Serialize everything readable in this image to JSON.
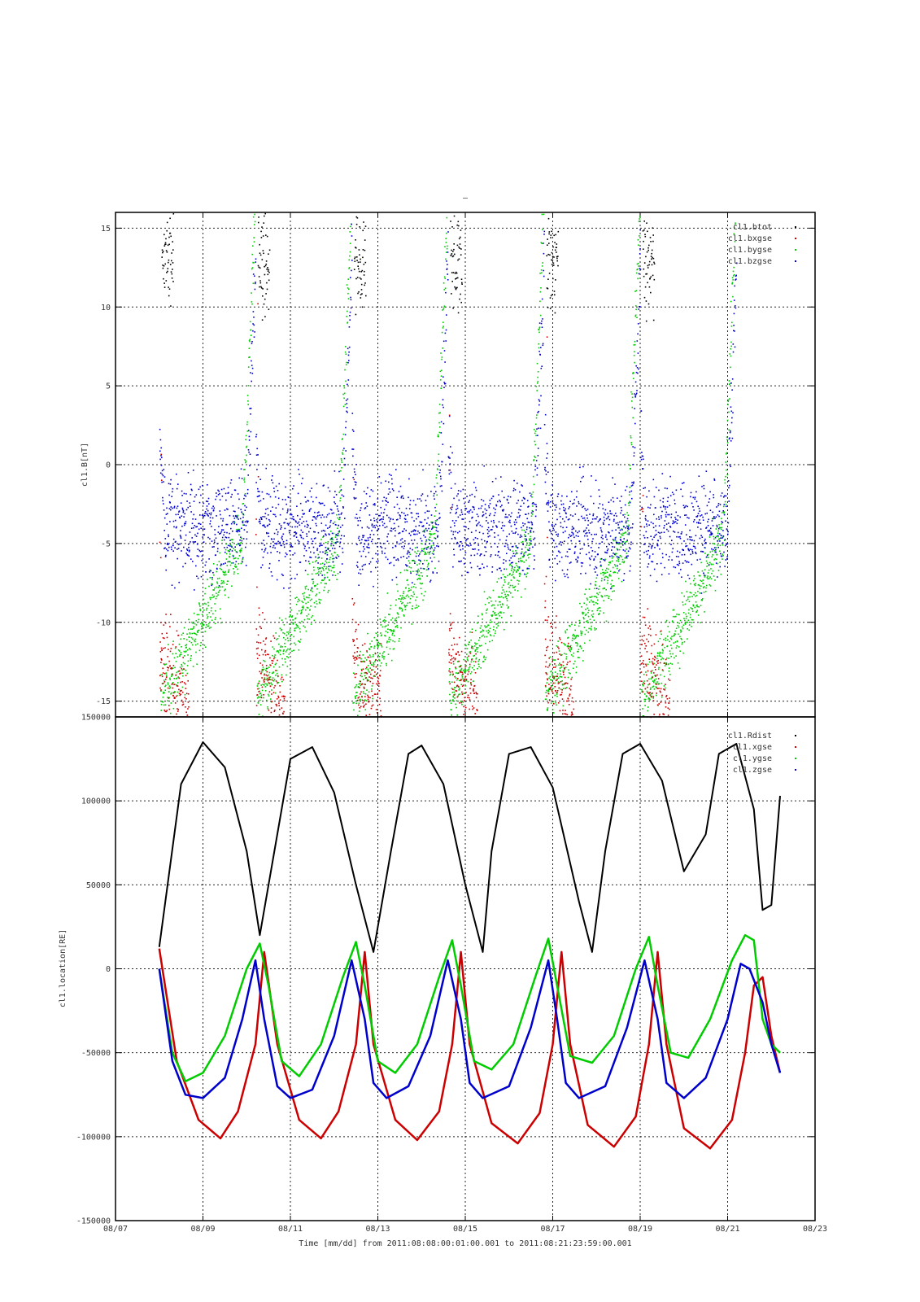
{
  "title": "–",
  "xlabel": "Time [mm/dd]  from 2011:08:08:00:01:00.001  to  2011:08:21:23:59:00.001",
  "chart_data": [
    {
      "type": "scatter",
      "panel": "top",
      "title": "–",
      "ylabel": "cl1.B[nT]",
      "xlabel": "Time [mm/dd]  from 2011:08:08:00:01:00.001  to  2011:08:21:23:59:00.001",
      "x_unit": "days since 2011-08-07 (08/07)",
      "xlim": [
        0,
        16
      ],
      "ylim": [
        -16,
        16
      ],
      "xticks": [
        0,
        2,
        4,
        6,
        8,
        10,
        12,
        14,
        16
      ],
      "xtick_labels": [
        "08/07",
        "08/09",
        "08/11",
        "08/13",
        "08/15",
        "08/17",
        "08/19",
        "08/21",
        "08/23"
      ],
      "yticks": [
        -15,
        -10,
        -5,
        0,
        5,
        10,
        15
      ],
      "ytick_labels": [
        "-15",
        "-10",
        "-5",
        "0",
        "5",
        "10",
        "15"
      ],
      "grid": true,
      "legend_position": "top-right",
      "series": [
        {
          "name": "cl1.btot",
          "color": "#000000"
        },
        {
          "name": "cl1.bxgse",
          "color": "#cc0000"
        },
        {
          "name": "cl1.bygse",
          "color": "#00cc00"
        },
        {
          "name": "cl1.bzgse",
          "color": "#0000cc"
        }
      ]
    },
    {
      "type": "line",
      "panel": "bottom",
      "ylabel": "cl1.location[RE]",
      "xlabel": "Time [mm/dd]  from 2011:08:08:00:01:00.001  to  2011:08:21:23:59:00.001",
      "x_unit": "days since 2011-08-07 (08/07)",
      "xlim": [
        0,
        16
      ],
      "ylim": [
        -150000,
        150000
      ],
      "xticks": [
        0,
        2,
        4,
        6,
        8,
        10,
        12,
        14,
        16
      ],
      "xtick_labels": [
        "08/07",
        "08/09",
        "08/11",
        "08/13",
        "08/15",
        "08/17",
        "08/19",
        "08/21",
        "08/23"
      ],
      "yticks": [
        -150000,
        -100000,
        -50000,
        0,
        50000,
        100000,
        150000
      ],
      "ytick_labels": [
        "-150000",
        "-100000",
        "-50000",
        "0",
        "50000",
        "100000",
        "150000"
      ],
      "grid": true,
      "legend_position": "top-right",
      "series": [
        {
          "name": "cl1.Rdist",
          "color": "#000000",
          "x": [
            1.0,
            1.5,
            2.0,
            2.5,
            3.0,
            3.3,
            3.6,
            4.0,
            4.5,
            5.0,
            5.5,
            5.9,
            6.3,
            6.7,
            7.0,
            7.5,
            8.0,
            8.4,
            8.6,
            9.0,
            9.5,
            10.0,
            10.6,
            10.9,
            11.2,
            11.6,
            12.0,
            12.5,
            13.0,
            13.5,
            13.8,
            14.2,
            14.6,
            14.8,
            15.0,
            15.2
          ],
          "y": [
            13000,
            110000,
            135000,
            120000,
            70000,
            20000,
            65000,
            125000,
            132000,
            105000,
            50000,
            10000,
            70000,
            128000,
            133000,
            110000,
            50000,
            10000,
            70000,
            128000,
            132000,
            108000,
            40000,
            10000,
            70000,
            128000,
            134000,
            112000,
            58000,
            80000,
            128000,
            134000,
            95000,
            35000,
            38000,
            103000
          ]
        },
        {
          "name": "cl1.xgse",
          "color": "#cc0000",
          "x": [
            1.0,
            1.4,
            1.9,
            2.4,
            2.8,
            3.2,
            3.4,
            3.7,
            4.2,
            4.7,
            5.1,
            5.5,
            5.7,
            5.9,
            6.4,
            6.9,
            7.4,
            7.7,
            7.9,
            8.1,
            8.6,
            9.2,
            9.7,
            10.0,
            10.2,
            10.4,
            10.8,
            11.4,
            11.9,
            12.2,
            12.4,
            12.6,
            13.0,
            13.6,
            14.1,
            14.4,
            14.6,
            14.8,
            15.0,
            15.2
          ],
          "y": [
            12000,
            -55000,
            -90000,
            -101000,
            -85000,
            -45000,
            10000,
            -45000,
            -90000,
            -101000,
            -85000,
            -45000,
            10000,
            -45000,
            -90000,
            -102000,
            -85000,
            -45000,
            10000,
            -45000,
            -92000,
            -104000,
            -86000,
            -45000,
            10000,
            -45000,
            -93000,
            -106000,
            -88000,
            -45000,
            10000,
            -45000,
            -95000,
            -107000,
            -90000,
            -50000,
            -10000,
            -5000,
            -40000,
            -62000
          ]
        },
        {
          "name": "cl1.ygse",
          "color": "#00cc00",
          "x": [
            1.0,
            1.3,
            1.6,
            2.0,
            2.5,
            3.0,
            3.3,
            3.5,
            3.8,
            4.2,
            4.7,
            5.2,
            5.5,
            5.7,
            6.0,
            6.4,
            6.9,
            7.4,
            7.7,
            7.9,
            8.2,
            8.6,
            9.1,
            9.6,
            9.9,
            10.1,
            10.4,
            10.9,
            11.4,
            11.9,
            12.2,
            12.4,
            12.7,
            13.1,
            13.6,
            14.1,
            14.4,
            14.6,
            14.8,
            15.0,
            15.2
          ],
          "y": [
            0,
            -50000,
            -67000,
            -62000,
            -40000,
            0,
            15000,
            -10000,
            -55000,
            -64000,
            -45000,
            -5000,
            16000,
            -10000,
            -55000,
            -62000,
            -45000,
            -5000,
            17000,
            -10000,
            -55000,
            -60000,
            -45000,
            -5000,
            18000,
            -10000,
            -52000,
            -56000,
            -40000,
            0,
            19000,
            -10000,
            -50000,
            -53000,
            -30000,
            5000,
            20000,
            17000,
            -30000,
            -45000,
            -50000
          ]
        },
        {
          "name": "cl1.zgse",
          "color": "#0000cc",
          "x": [
            1.0,
            1.3,
            1.6,
            2.0,
            2.5,
            2.9,
            3.2,
            3.4,
            3.7,
            4.0,
            4.5,
            5.0,
            5.4,
            5.7,
            5.9,
            6.2,
            6.7,
            7.2,
            7.6,
            7.9,
            8.1,
            8.4,
            9.0,
            9.5,
            9.9,
            10.1,
            10.3,
            10.6,
            11.2,
            11.7,
            12.1,
            12.4,
            12.6,
            13.0,
            13.5,
            14.0,
            14.3,
            14.5,
            14.8,
            15.0,
            15.2
          ],
          "y": [
            0,
            -55000,
            -75000,
            -77000,
            -65000,
            -30000,
            5000,
            -30000,
            -70000,
            -77000,
            -72000,
            -40000,
            5000,
            -30000,
            -68000,
            -77000,
            -70000,
            -40000,
            5000,
            -30000,
            -68000,
            -77000,
            -70000,
            -35000,
            5000,
            -30000,
            -68000,
            -77000,
            -70000,
            -35000,
            5000,
            -30000,
            -68000,
            -77000,
            -65000,
            -30000,
            3000,
            0,
            -20000,
            -45000,
            -62000
          ]
        }
      ]
    }
  ]
}
